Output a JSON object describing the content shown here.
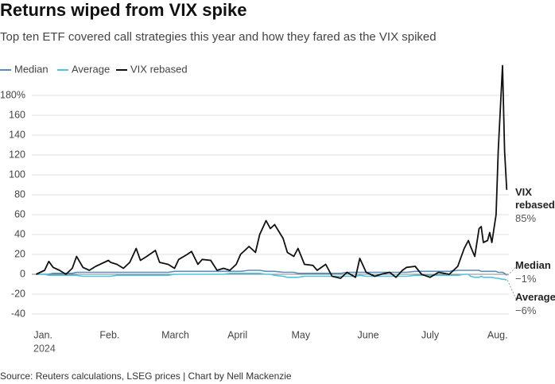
{
  "chart_data": {
    "type": "line",
    "title": "Returns wiped from VIX spike",
    "subtitle": "Top ten ETF covered call strategies this year and how they fared as the VIX spiked",
    "source": "Source: Reuters calculations, LSEG prices | Chart by Nell Mackenzie",
    "year_label": "2024",
    "x": [
      0,
      4,
      6,
      8,
      11,
      14,
      17,
      19,
      22,
      25,
      28,
      32,
      34,
      35,
      38,
      41,
      44,
      47,
      49,
      52,
      56,
      58,
      62,
      65,
      67,
      71,
      73,
      76,
      78,
      82,
      85,
      88,
      91,
      94,
      96,
      100,
      103,
      105,
      108,
      110,
      112,
      116,
      118,
      121,
      123,
      126,
      130,
      132,
      136,
      139,
      143,
      146,
      150,
      152,
      155,
      159,
      162,
      166,
      169,
      172,
      174,
      178,
      181,
      185,
      189,
      194,
      198,
      201,
      203,
      204,
      206,
      208,
      209,
      210,
      212,
      213,
      214,
      216,
      217,
      219,
      220,
      221
    ],
    "xlim": [
      -2,
      222
    ],
    "xticks": [
      {
        "value": 0,
        "label": "Jan."
      },
      {
        "value": 31,
        "label": "Feb."
      },
      {
        "value": 60,
        "label": "March"
      },
      {
        "value": 91,
        "label": "April"
      },
      {
        "value": 121,
        "label": "May"
      },
      {
        "value": 152,
        "label": "June"
      },
      {
        "value": 182,
        "label": "July"
      },
      {
        "value": 213,
        "label": "Aug."
      }
    ],
    "ylim": [
      -40,
      210
    ],
    "yticks": [
      {
        "value": 180,
        "label": "180%"
      },
      160,
      140,
      120,
      100,
      80,
      60,
      40,
      20,
      0,
      -20,
      -40
    ],
    "grid": true,
    "series": [
      {
        "name": "Median",
        "color": "#5b8db8",
        "last_value_label": "−1%",
        "values": [
          0,
          0,
          0,
          1,
          1,
          1,
          1,
          2,
          2,
          2,
          2,
          2,
          2,
          2,
          2,
          2,
          2,
          2,
          2,
          2,
          2,
          2,
          2,
          3,
          3,
          3,
          3,
          3,
          3,
          3,
          3,
          3,
          3,
          3,
          3,
          4,
          4,
          4,
          3,
          3,
          3,
          2,
          2,
          2,
          1,
          1,
          1,
          1,
          1,
          1,
          1,
          2,
          2,
          2,
          2,
          2,
          2,
          2,
          2,
          2,
          2,
          3,
          3,
          3,
          3,
          3,
          4,
          4,
          4,
          4,
          4,
          4,
          3,
          3,
          3,
          3,
          3,
          3,
          2,
          2,
          1,
          -1
        ]
      },
      {
        "name": "Average",
        "color": "#4fc3e0",
        "last_value_label": "−6%",
        "values": [
          0,
          0,
          -1,
          -1,
          -1,
          -1,
          -1,
          -1,
          -2,
          -2,
          -2,
          -2,
          -2,
          -2,
          -1,
          -1,
          -1,
          -1,
          -1,
          -1,
          -1,
          -1,
          -1,
          0,
          0,
          0,
          0,
          0,
          0,
          0,
          0,
          0,
          1,
          1,
          1,
          1,
          1,
          1,
          0,
          0,
          -1,
          -2,
          -3,
          -3,
          -3,
          -2,
          -2,
          -2,
          -2,
          -2,
          -2,
          -2,
          -2,
          -1,
          -2,
          -2,
          -2,
          -2,
          -2,
          -2,
          -2,
          -1,
          -1,
          -1,
          -1,
          -1,
          -1,
          0,
          0,
          -2,
          -3,
          -3,
          -2,
          -3,
          -3,
          -3,
          -3,
          -4,
          -4,
          -5,
          -5,
          -6
        ]
      },
      {
        "name": "VIX rebased",
        "color": "#111111",
        "last_value_label": "85%",
        "values": [
          0,
          4,
          13,
          7,
          4,
          0,
          6,
          18,
          7,
          4,
          8,
          12,
          14,
          12,
          10,
          6,
          12,
          26,
          14,
          18,
          24,
          12,
          10,
          6,
          15,
          20,
          23,
          10,
          15,
          14,
          4,
          6,
          4,
          10,
          20,
          28,
          22,
          40,
          54,
          46,
          50,
          36,
          22,
          18,
          26,
          10,
          9,
          4,
          10,
          -2,
          -4,
          2,
          -3,
          16,
          2,
          -2,
          0,
          2,
          -3,
          4,
          7,
          8,
          0,
          -3,
          2,
          0,
          8,
          26,
          34,
          28,
          18,
          46,
          48,
          32,
          34,
          42,
          32,
          60,
          124,
          210,
          124,
          85
        ]
      }
    ]
  }
}
